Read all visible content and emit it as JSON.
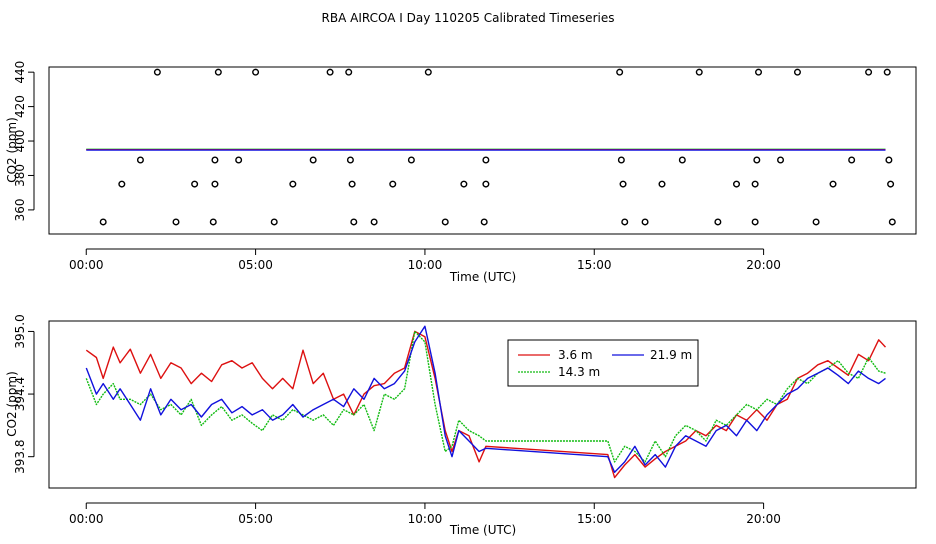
{
  "title": "RBA AIRCOA I  Day 110205  Calibrated Timeseries",
  "colors": {
    "s36": "#dd1111",
    "s143": "#11bb11",
    "s219": "#1111dd",
    "axis": "#000000"
  },
  "chart_data": [
    {
      "type": "scatter+line",
      "xlabel": "Time (UTC)",
      "ylabel": "CO2 (ppm)",
      "xlim": [
        -1.1,
        24.5
      ],
      "ylim": [
        346,
        443
      ],
      "x_ticks": [
        0,
        5,
        10,
        15,
        20
      ],
      "x_tick_labels": [
        "00:00",
        "05:00",
        "10:00",
        "15:00",
        "20:00"
      ],
      "y_ticks": [
        360,
        380,
        400,
        420,
        440
      ],
      "y_tick_labels": [
        "360",
        "380",
        "400",
        "420",
        "440"
      ],
      "flat_line": {
        "from": 0,
        "to": 23.6,
        "value": 395
      },
      "points": [
        [
          2.1,
          440
        ],
        [
          3.9,
          440
        ],
        [
          5.0,
          440
        ],
        [
          7.2,
          440
        ],
        [
          7.75,
          440
        ],
        [
          10.1,
          440
        ],
        [
          15.75,
          440
        ],
        [
          18.1,
          440
        ],
        [
          19.85,
          440
        ],
        [
          21.0,
          440
        ],
        [
          23.1,
          440
        ],
        [
          23.65,
          440
        ],
        [
          1.6,
          389
        ],
        [
          3.8,
          389
        ],
        [
          4.5,
          389
        ],
        [
          6.7,
          389
        ],
        [
          7.8,
          389
        ],
        [
          9.6,
          389
        ],
        [
          11.8,
          389
        ],
        [
          15.8,
          389
        ],
        [
          17.6,
          389
        ],
        [
          19.8,
          389
        ],
        [
          20.5,
          389
        ],
        [
          22.6,
          389
        ],
        [
          23.7,
          389
        ],
        [
          1.05,
          375
        ],
        [
          3.2,
          375
        ],
        [
          3.8,
          375
        ],
        [
          6.1,
          375
        ],
        [
          7.85,
          375
        ],
        [
          9.05,
          375
        ],
        [
          11.15,
          375
        ],
        [
          11.8,
          375
        ],
        [
          15.85,
          375
        ],
        [
          17.0,
          375
        ],
        [
          19.2,
          375
        ],
        [
          19.75,
          375
        ],
        [
          22.05,
          375
        ],
        [
          23.75,
          375
        ],
        [
          0.5,
          353
        ],
        [
          2.65,
          353
        ],
        [
          3.75,
          353
        ],
        [
          5.55,
          353
        ],
        [
          7.9,
          353
        ],
        [
          8.5,
          353
        ],
        [
          10.6,
          353
        ],
        [
          11.75,
          353
        ],
        [
          15.9,
          353
        ],
        [
          16.5,
          353
        ],
        [
          18.65,
          353
        ],
        [
          19.75,
          353
        ],
        [
          21.55,
          353
        ],
        [
          23.8,
          353
        ]
      ]
    },
    {
      "type": "line",
      "xlabel": "Time (UTC)",
      "ylabel": "CO2 (ppm)",
      "xlim": [
        -1.1,
        24.5
      ],
      "ylim": [
        393.5,
        395.1
      ],
      "x_ticks": [
        0,
        5,
        10,
        15,
        20
      ],
      "x_tick_labels": [
        "00:00",
        "05:00",
        "10:00",
        "15:00",
        "20:00"
      ],
      "y_ticks": [
        393.8,
        394.4,
        395.0
      ],
      "y_tick_labels": [
        "393.8",
        "394.4",
        "395.0"
      ],
      "legend": {
        "placement": "top-right-inset",
        "entries": [
          "3.6 m",
          "14.3 m",
          "21.9 m"
        ]
      },
      "series": [
        {
          "name": "3.6 m",
          "color": "#dd1111",
          "x": [
            0,
            0.3,
            0.5,
            0.8,
            1.0,
            1.3,
            1.6,
            1.9,
            2.2,
            2.5,
            2.8,
            3.1,
            3.4,
            3.7,
            4.0,
            4.3,
            4.6,
            4.9,
            5.2,
            5.5,
            5.8,
            6.1,
            6.4,
            6.7,
            7.0,
            7.3,
            7.6,
            7.9,
            8.2,
            8.5,
            8.8,
            9.1,
            9.4,
            9.7,
            10.0,
            10.3,
            10.6,
            10.8,
            11.0,
            11.3,
            11.6,
            11.8,
            15.4,
            15.6,
            15.9,
            16.2,
            16.5,
            16.8,
            17.1,
            17.4,
            17.7,
            18.0,
            18.3,
            18.6,
            18.9,
            19.2,
            19.5,
            19.8,
            20.1,
            20.4,
            20.7,
            21.0,
            21.3,
            21.6,
            21.9,
            22.2,
            22.5,
            22.8,
            23.1,
            23.4,
            23.6
          ],
          "values": [
            394.82,
            394.75,
            394.55,
            394.85,
            394.7,
            394.83,
            394.6,
            394.78,
            394.55,
            394.7,
            394.65,
            394.5,
            394.6,
            394.52,
            394.68,
            394.72,
            394.65,
            394.7,
            394.55,
            394.45,
            394.55,
            394.45,
            394.82,
            394.5,
            394.6,
            394.35,
            394.4,
            394.2,
            394.4,
            394.48,
            394.5,
            394.6,
            394.65,
            395.0,
            394.95,
            394.55,
            394.05,
            393.85,
            394.05,
            394.0,
            393.75,
            393.9,
            393.82,
            393.6,
            393.72,
            393.82,
            393.7,
            393.78,
            393.85,
            393.9,
            393.95,
            394.05,
            394.0,
            394.1,
            394.05,
            394.2,
            394.15,
            394.25,
            394.15,
            394.3,
            394.35,
            394.55,
            394.6,
            394.68,
            394.72,
            394.65,
            394.58,
            394.78,
            394.72,
            394.92,
            394.85
          ]
        },
        {
          "name": "14.3 m",
          "color": "#11bb11",
          "x": [
            0,
            0.3,
            0.5,
            0.8,
            1.0,
            1.3,
            1.6,
            1.9,
            2.2,
            2.5,
            2.8,
            3.1,
            3.4,
            3.7,
            4.0,
            4.3,
            4.6,
            4.9,
            5.2,
            5.5,
            5.8,
            6.1,
            6.4,
            6.7,
            7.0,
            7.3,
            7.6,
            7.9,
            8.2,
            8.5,
            8.8,
            9.1,
            9.4,
            9.7,
            10.0,
            10.3,
            10.6,
            10.8,
            11.0,
            11.3,
            11.6,
            11.8,
            15.4,
            15.6,
            15.9,
            16.2,
            16.5,
            16.8,
            17.1,
            17.4,
            17.7,
            18.0,
            18.3,
            18.6,
            18.9,
            19.2,
            19.5,
            19.8,
            20.1,
            20.4,
            20.7,
            21.0,
            21.3,
            21.6,
            21.9,
            22.2,
            22.5,
            22.8,
            23.1,
            23.4,
            23.6
          ],
          "values": [
            394.55,
            394.3,
            394.4,
            394.5,
            394.35,
            394.35,
            394.3,
            394.4,
            394.25,
            394.3,
            394.2,
            394.35,
            394.1,
            394.2,
            394.28,
            394.15,
            394.2,
            394.12,
            394.05,
            394.2,
            394.15,
            394.25,
            394.2,
            394.15,
            394.2,
            394.1,
            394.25,
            394.2,
            394.3,
            394.05,
            394.4,
            394.35,
            394.45,
            395.0,
            394.9,
            394.3,
            393.85,
            393.9,
            394.15,
            394.05,
            394.0,
            393.95,
            393.95,
            393.75,
            393.9,
            393.85,
            393.75,
            393.95,
            393.8,
            394.0,
            394.1,
            394.05,
            393.95,
            394.15,
            394.1,
            394.2,
            394.3,
            394.25,
            394.35,
            394.3,
            394.45,
            394.55,
            394.5,
            394.6,
            394.65,
            394.72,
            394.6,
            394.55,
            394.75,
            394.62,
            394.6
          ]
        },
        {
          "name": "21.9 m",
          "color": "#1111dd",
          "x": [
            0,
            0.3,
            0.5,
            0.8,
            1.0,
            1.3,
            1.6,
            1.9,
            2.2,
            2.5,
            2.8,
            3.1,
            3.4,
            3.7,
            4.0,
            4.3,
            4.6,
            4.9,
            5.2,
            5.5,
            5.8,
            6.1,
            6.4,
            6.7,
            7.0,
            7.3,
            7.6,
            7.9,
            8.2,
            8.5,
            8.8,
            9.1,
            9.4,
            9.7,
            10.0,
            10.3,
            10.6,
            10.8,
            11.0,
            11.3,
            11.6,
            11.8,
            15.4,
            15.6,
            15.9,
            16.2,
            16.5,
            16.8,
            17.1,
            17.4,
            17.7,
            18.0,
            18.3,
            18.6,
            18.9,
            19.2,
            19.5,
            19.8,
            20.1,
            20.4,
            20.7,
            21.0,
            21.3,
            21.6,
            21.9,
            22.2,
            22.5,
            22.8,
            23.1,
            23.4,
            23.6
          ],
          "values": [
            394.65,
            394.4,
            394.5,
            394.35,
            394.45,
            394.3,
            394.15,
            394.45,
            394.2,
            394.35,
            394.25,
            394.3,
            394.18,
            394.3,
            394.35,
            394.22,
            394.28,
            394.2,
            394.25,
            394.15,
            394.2,
            394.3,
            394.18,
            394.25,
            394.3,
            394.35,
            394.28,
            394.45,
            394.35,
            394.55,
            394.45,
            394.5,
            394.62,
            394.9,
            395.05,
            394.6,
            394.0,
            393.8,
            394.05,
            393.95,
            393.85,
            393.88,
            393.8,
            393.65,
            393.75,
            393.9,
            393.72,
            393.82,
            393.7,
            393.9,
            394.0,
            393.95,
            393.9,
            394.05,
            394.1,
            394.0,
            394.15,
            394.05,
            394.2,
            394.3,
            394.4,
            394.45,
            394.55,
            394.6,
            394.65,
            394.58,
            394.5,
            394.62,
            394.55,
            394.5,
            394.55
          ]
        }
      ]
    }
  ]
}
